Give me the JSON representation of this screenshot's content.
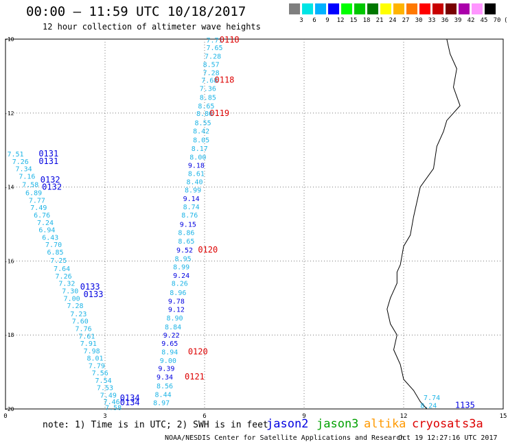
{
  "header": {
    "title": "00:00 – 11:59 UTC 10/18/2017",
    "subtitle": "12 hour collection of altimeter wave heights"
  },
  "color_scale": {
    "colors": [
      "#7f7f7f",
      "#00e5e5",
      "#00b2ff",
      "#0000ff",
      "#00ff00",
      "#00c800",
      "#007800",
      "#ffff00",
      "#ffb400",
      "#ff7800",
      "#ff0000",
      "#c80000",
      "#780000",
      "#aa00aa",
      "#ff96ff",
      "#000000"
    ],
    "labels": [
      "3",
      "6",
      "9",
      "12",
      "15",
      "18",
      "21",
      "24",
      "27",
      "30",
      "33",
      "36",
      "39",
      "42",
      "45",
      "70",
      "(ft)"
    ]
  },
  "chart_data": {
    "type": "scatter",
    "xlim": [
      0,
      15
    ],
    "ylim": [
      -20,
      -10
    ],
    "x_ticks": [
      "0",
      "3",
      "6",
      "9",
      "12",
      "15"
    ],
    "y_ticks": [
      "-10",
      "-12",
      "-14",
      "-16",
      "-18",
      "-20"
    ],
    "grid": true,
    "colors": {
      "jason2": "#0000e0",
      "jason3": "#00a000",
      "altika": "#ff9900",
      "cryosat": "#dd0000",
      "s3a": "#dd0000",
      "swh": "#1eb4e6"
    },
    "coastline_lon": [
      13.3,
      13.4,
      13.6,
      13.5,
      13.7,
      13.3,
      13.2,
      13.0,
      12.9,
      12.5,
      12.4,
      12.3,
      12.2,
      12.0,
      11.9,
      11.8,
      11.8,
      11.7,
      11.6,
      11.5,
      11.6,
      11.8,
      11.7,
      11.9,
      12.0,
      12.3,
      12.5,
      12.7
    ],
    "coastline_lat": [
      -10.0,
      -10.4,
      -10.8,
      -11.3,
      -11.8,
      -12.2,
      -12.5,
      -12.9,
      -13.5,
      -14.0,
      -14.4,
      -14.8,
      -15.3,
      -15.6,
      -16.1,
      -16.3,
      -16.6,
      -16.8,
      -17.0,
      -17.3,
      -17.7,
      -18.0,
      -18.4,
      -18.8,
      -19.2,
      -19.5,
      -19.8,
      -20.0
    ],
    "tracks": [
      {
        "points": [
          {
            "x": 6.3,
            "y": -10.02,
            "v": "7.71",
            "c": "swh"
          },
          {
            "x": 6.3,
            "y": -10.22,
            "v": "7.65",
            "c": "swh"
          },
          {
            "x": 6.25,
            "y": -10.45,
            "v": "7.28",
            "c": "swh"
          },
          {
            "x": 6.2,
            "y": -10.68,
            "v": "8.57",
            "c": "swh"
          },
          {
            "x": 6.2,
            "y": -10.9,
            "v": "7.28",
            "c": "swh"
          },
          {
            "x": 6.15,
            "y": -11.1,
            "v": "7.68",
            "c": "swh"
          },
          {
            "x": 6.1,
            "y": -11.33,
            "v": "7.36",
            "c": "swh"
          },
          {
            "x": 6.1,
            "y": -11.57,
            "v": "8.85",
            "c": "swh"
          },
          {
            "x": 6.05,
            "y": -11.8,
            "v": "8.65",
            "c": "swh"
          },
          {
            "x": 6.0,
            "y": -12.0,
            "v": "8.86",
            "c": "swh"
          },
          {
            "x": 5.95,
            "y": -12.25,
            "v": "8.55",
            "c": "swh"
          },
          {
            "x": 5.9,
            "y": -12.48,
            "v": "8.42",
            "c": "swh"
          },
          {
            "x": 5.9,
            "y": -12.72,
            "v": "8.05",
            "c": "swh"
          },
          {
            "x": 5.85,
            "y": -12.95,
            "v": "8.17",
            "c": "swh"
          },
          {
            "x": 5.8,
            "y": -13.18,
            "v": "8.00",
            "c": "swh"
          },
          {
            "x": 5.75,
            "y": -13.4,
            "v": "9.18",
            "c": "jason2"
          },
          {
            "x": 5.75,
            "y": -13.63,
            "v": "8.61",
            "c": "swh"
          },
          {
            "x": 5.7,
            "y": -13.85,
            "v": "8.40",
            "c": "swh"
          },
          {
            "x": 5.65,
            "y": -14.07,
            "v": "8.99",
            "c": "swh"
          },
          {
            "x": 5.6,
            "y": -14.3,
            "v": "9.14",
            "c": "jason2"
          },
          {
            "x": 5.6,
            "y": -14.53,
            "v": "8.74",
            "c": "swh"
          },
          {
            "x": 5.55,
            "y": -14.75,
            "v": "8.76",
            "c": "swh"
          },
          {
            "x": 5.5,
            "y": -15.0,
            "v": "9.15",
            "c": "jason2"
          },
          {
            "x": 5.45,
            "y": -15.22,
            "v": "8.86",
            "c": "swh"
          },
          {
            "x": 5.45,
            "y": -15.45,
            "v": "8.65",
            "c": "swh"
          },
          {
            "x": 5.4,
            "y": -15.7,
            "v": "9.52",
            "c": "jason2"
          },
          {
            "x": 5.35,
            "y": -15.93,
            "v": "8.95",
            "c": "swh"
          },
          {
            "x": 5.3,
            "y": -16.15,
            "v": "8.99",
            "c": "swh"
          },
          {
            "x": 5.3,
            "y": -16.38,
            "v": "9.24",
            "c": "jason2"
          },
          {
            "x": 5.25,
            "y": -16.6,
            "v": "8.26",
            "c": "swh"
          },
          {
            "x": 5.2,
            "y": -16.85,
            "v": "8.96",
            "c": "swh"
          },
          {
            "x": 5.15,
            "y": -17.08,
            "v": "9.78",
            "c": "jason2"
          },
          {
            "x": 5.15,
            "y": -17.3,
            "v": "9.12",
            "c": "jason2"
          },
          {
            "x": 5.1,
            "y": -17.53,
            "v": "8.90",
            "c": "swh"
          },
          {
            "x": 5.05,
            "y": -17.77,
            "v": "8.84",
            "c": "swh"
          },
          {
            "x": 5.0,
            "y": -18.0,
            "v": "9.22",
            "c": "jason2"
          },
          {
            "x": 4.95,
            "y": -18.22,
            "v": "9.65",
            "c": "jason2"
          },
          {
            "x": 4.95,
            "y": -18.45,
            "v": "8.94",
            "c": "swh"
          },
          {
            "x": 4.9,
            "y": -18.68,
            "v": "9.00",
            "c": "swh"
          },
          {
            "x": 4.85,
            "y": -18.9,
            "v": "9.39",
            "c": "jason2"
          },
          {
            "x": 4.8,
            "y": -19.13,
            "v": "9.34",
            "c": "jason2"
          },
          {
            "x": 4.8,
            "y": -19.37,
            "v": "8.56",
            "c": "swh"
          },
          {
            "x": 4.75,
            "y": -19.6,
            "v": "8.44",
            "c": "swh"
          },
          {
            "x": 4.7,
            "y": -19.82,
            "v": "8.97",
            "c": "swh"
          }
        ],
        "labels": [
          {
            "x": 6.45,
            "y": -10.02,
            "t": "0118",
            "c": "cryosat"
          },
          {
            "x": 6.3,
            "y": -11.1,
            "t": "0118",
            "c": "cryosat"
          },
          {
            "x": 6.15,
            "y": -12.0,
            "t": "0119",
            "c": "cryosat"
          },
          {
            "x": 5.8,
            "y": -15.7,
            "t": "0120",
            "c": "cryosat"
          },
          {
            "x": 5.5,
            "y": -18.45,
            "t": "0120",
            "c": "cryosat"
          },
          {
            "x": 5.4,
            "y": -19.13,
            "t": "0121",
            "c": "cryosat"
          }
        ]
      },
      {
        "points": [
          {
            "x": 0.3,
            "y": -13.1,
            "v": "7.51",
            "c": "swh"
          },
          {
            "x": 0.45,
            "y": -13.3,
            "v": "7.26",
            "c": "swh"
          },
          {
            "x": 0.55,
            "y": -13.5,
            "v": "7.34",
            "c": "swh"
          },
          {
            "x": 0.65,
            "y": -13.7,
            "v": "7.16",
            "c": "swh"
          },
          {
            "x": 0.75,
            "y": -13.92,
            "v": "7.58",
            "c": "swh"
          },
          {
            "x": 0.85,
            "y": -14.15,
            "v": "6.89",
            "c": "swh"
          },
          {
            "x": 0.95,
            "y": -14.35,
            "v": "7.77",
            "c": "swh"
          },
          {
            "x": 1.0,
            "y": -14.55,
            "v": "7.49",
            "c": "swh"
          },
          {
            "x": 1.1,
            "y": -14.75,
            "v": "6.76",
            "c": "swh"
          },
          {
            "x": 1.2,
            "y": -14.95,
            "v": "7.24",
            "c": "swh"
          },
          {
            "x": 1.25,
            "y": -15.15,
            "v": "6.94",
            "c": "swh"
          },
          {
            "x": 1.35,
            "y": -15.35,
            "v": "6.43",
            "c": "swh"
          },
          {
            "x": 1.45,
            "y": -15.55,
            "v": "7.70",
            "c": "swh"
          },
          {
            "x": 1.5,
            "y": -15.75,
            "v": "6.85",
            "c": "swh"
          },
          {
            "x": 1.6,
            "y": -15.97,
            "v": "7.25",
            "c": "swh"
          },
          {
            "x": 1.7,
            "y": -16.2,
            "v": "7.64",
            "c": "swh"
          },
          {
            "x": 1.75,
            "y": -16.4,
            "v": "7.26",
            "c": "swh"
          },
          {
            "x": 1.85,
            "y": -16.6,
            "v": "7.32",
            "c": "swh"
          },
          {
            "x": 1.95,
            "y": -16.8,
            "v": "7.30",
            "c": "swh"
          },
          {
            "x": 2.0,
            "y": -17.0,
            "v": "7.00",
            "c": "swh"
          },
          {
            "x": 2.1,
            "y": -17.2,
            "v": "7.28",
            "c": "swh"
          },
          {
            "x": 2.2,
            "y": -17.42,
            "v": "7.23",
            "c": "swh"
          },
          {
            "x": 2.25,
            "y": -17.62,
            "v": "7.60",
            "c": "swh"
          },
          {
            "x": 2.35,
            "y": -17.82,
            "v": "7.76",
            "c": "swh"
          },
          {
            "x": 2.45,
            "y": -18.02,
            "v": "7.61",
            "c": "swh"
          },
          {
            "x": 2.5,
            "y": -18.22,
            "v": "7.91",
            "c": "swh"
          },
          {
            "x": 2.6,
            "y": -18.42,
            "v": "7.98",
            "c": "swh"
          },
          {
            "x": 2.7,
            "y": -18.62,
            "v": "8.01",
            "c": "swh"
          },
          {
            "x": 2.75,
            "y": -18.82,
            "v": "7.79",
            "c": "swh"
          },
          {
            "x": 2.85,
            "y": -19.02,
            "v": "7.56",
            "c": "swh"
          },
          {
            "x": 2.95,
            "y": -19.22,
            "v": "7.54",
            "c": "swh"
          },
          {
            "x": 3.0,
            "y": -19.42,
            "v": "7.53",
            "c": "swh"
          },
          {
            "x": 3.1,
            "y": -19.62,
            "v": "7.49",
            "c": "swh"
          },
          {
            "x": 3.2,
            "y": -19.8,
            "v": "7.46",
            "c": "swh"
          },
          {
            "x": 3.25,
            "y": -19.95,
            "v": "7.58",
            "c": "swh"
          }
        ],
        "labels": [
          {
            "x": 1.0,
            "y": -13.1,
            "t": "0131",
            "c": "jason2"
          },
          {
            "x": 1.0,
            "y": -13.3,
            "t": "0131",
            "c": "jason2"
          },
          {
            "x": 1.05,
            "y": -13.8,
            "t": "0132",
            "c": "jason2"
          },
          {
            "x": 1.1,
            "y": -14.0,
            "t": "0132",
            "c": "jason2"
          },
          {
            "x": 2.25,
            "y": -16.7,
            "t": "0133",
            "c": "jason2"
          },
          {
            "x": 2.35,
            "y": -16.9,
            "t": "0133",
            "c": "jason2"
          },
          {
            "x": 3.45,
            "y": -19.7,
            "t": "0134",
            "c": "jason2"
          },
          {
            "x": 3.45,
            "y": -19.82,
            "t": "0134",
            "c": "jason2"
          }
        ]
      },
      {
        "points": [
          {
            "x": 12.85,
            "y": -19.68,
            "v": "7.74",
            "c": "swh"
          },
          {
            "x": 12.75,
            "y": -19.9,
            "v": "8.24",
            "c": "swh"
          }
        ],
        "labels": [
          {
            "x": 13.55,
            "y": -19.9,
            "t": "1135",
            "c": "jason2"
          }
        ]
      }
    ]
  },
  "note": "note: 1) Time is in UTC; 2) SWH is in feet",
  "legend": [
    {
      "name": "jason2",
      "color": "#0000e0"
    },
    {
      "name": "jason3",
      "color": "#00a000"
    },
    {
      "name": "altika",
      "color": "#ff9900"
    },
    {
      "name": "cryosat",
      "color": "#dd0000"
    },
    {
      "name": "s3a",
      "color": "#dd0000"
    }
  ],
  "footer": {
    "credit": "NOAA/NESDIS Center for Satellite Applications and Research",
    "timestamp": "Oct 19 12:27:16 UTC 2017"
  }
}
